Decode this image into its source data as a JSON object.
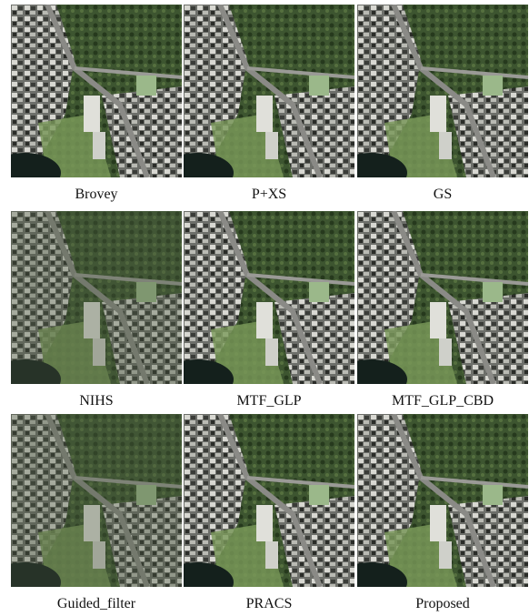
{
  "panels": [
    {
      "label": "Brovey"
    },
    {
      "label": "P+XS"
    },
    {
      "label": "GS"
    },
    {
      "label": "NIHS"
    },
    {
      "label": "MTF_GLP"
    },
    {
      "label": "MTF_GLP_CBD"
    },
    {
      "label": "Guided_filter"
    },
    {
      "label": "PRACS"
    },
    {
      "label": "Proposed"
    }
  ]
}
